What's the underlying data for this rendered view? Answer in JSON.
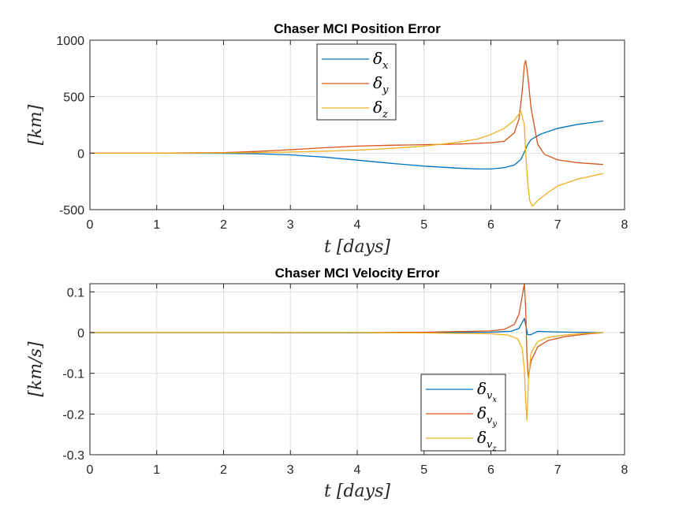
{
  "chart_data": [
    {
      "type": "line",
      "title": "Chaser MCI Position Error",
      "xlabel": "t [days]",
      "ylabel": "[km]",
      "xlim": [
        0,
        8
      ],
      "ylim": [
        -500,
        1000
      ],
      "xticks": [
        "0",
        "1",
        "2",
        "3",
        "4",
        "5",
        "6",
        "7",
        "8"
      ],
      "yticks": [
        "-500",
        "0",
        "500",
        "1000"
      ],
      "ytick_values": [
        -500,
        0,
        500,
        1000
      ],
      "grid": true,
      "legend_position": "top-center",
      "series": [
        {
          "name": "δx",
          "sym": "δ",
          "sub": "x",
          "color": "#0072BD",
          "x": [
            0,
            1,
            2,
            2.5,
            3,
            3.5,
            4,
            4.5,
            5,
            5.5,
            5.8,
            6,
            6.2,
            6.35,
            6.45,
            6.5,
            6.55,
            6.6,
            6.75,
            7,
            7.3,
            7.68
          ],
          "y": [
            0,
            0,
            -2,
            -5,
            -15,
            -35,
            -62,
            -90,
            -115,
            -132,
            -140,
            -140,
            -128,
            -105,
            -55,
            10,
            75,
            120,
            170,
            220,
            255,
            285
          ]
        },
        {
          "name": "δy",
          "sym": "δ",
          "sub": "y",
          "color": "#D95319",
          "x": [
            0,
            1,
            2,
            2.5,
            3,
            3.5,
            4,
            4.5,
            5,
            5.5,
            6,
            6.2,
            6.35,
            6.42,
            6.47,
            6.5,
            6.52,
            6.55,
            6.6,
            6.7,
            6.8,
            7,
            7.3,
            7.68
          ],
          "y": [
            0,
            0,
            5,
            15,
            30,
            48,
            62,
            70,
            75,
            80,
            92,
            105,
            180,
            300,
            550,
            780,
            820,
            700,
            400,
            80,
            -10,
            -60,
            -85,
            -100
          ],
          "peak": 820
        },
        {
          "name": "δz",
          "sym": "δ",
          "sub": "z",
          "color": "#EDB120",
          "x": [
            0,
            1,
            2,
            2.5,
            3,
            3.5,
            4,
            4.5,
            5,
            5.5,
            5.8,
            6,
            6.2,
            6.35,
            6.45,
            6.5,
            6.52,
            6.55,
            6.58,
            6.62,
            6.7,
            6.85,
            7,
            7.3,
            7.68
          ],
          "y": [
            0,
            0,
            2,
            5,
            10,
            17,
            27,
            42,
            62,
            95,
            125,
            165,
            220,
            290,
            370,
            250,
            0,
            -250,
            -420,
            -470,
            -420,
            -350,
            -290,
            -230,
            -180
          ]
        }
      ]
    },
    {
      "type": "line",
      "title": "Chaser MCI Velocity Error",
      "xlabel": "t [days]",
      "ylabel": "[km/s]",
      "xlim": [
        0,
        8
      ],
      "ylim": [
        -0.3,
        0.12
      ],
      "xticks": [
        "0",
        "1",
        "2",
        "3",
        "4",
        "5",
        "6",
        "7",
        "8"
      ],
      "yticks": [
        "-0.3",
        "-0.2",
        "-0.1",
        "0",
        "0.1"
      ],
      "ytick_values": [
        -0.3,
        -0.2,
        -0.1,
        0,
        0.1
      ],
      "grid": true,
      "legend_position": "bottom-center",
      "series": [
        {
          "name": "δvx",
          "sym": "δ",
          "sub": "v",
          "subsub": "x",
          "color": "#0072BD",
          "x": [
            0,
            2,
            4,
            5,
            6,
            6.3,
            6.42,
            6.47,
            6.5,
            6.52,
            6.55,
            6.6,
            6.7,
            6.9,
            7.2,
            7.68
          ],
          "y": [
            0,
            0,
            -0.0005,
            0,
            0.001,
            0.003,
            0.01,
            0.025,
            0.035,
            0.02,
            -0.005,
            -0.005,
            0.003,
            0.002,
            0.001,
            0
          ]
        },
        {
          "name": "δvy",
          "sym": "δ",
          "sub": "v",
          "subsub": "y",
          "color": "#D95319",
          "x": [
            0,
            2,
            4,
            5,
            6,
            6.2,
            6.35,
            6.42,
            6.47,
            6.5,
            6.52,
            6.54,
            6.56,
            6.6,
            6.7,
            6.85,
            7.1,
            7.4,
            7.68
          ],
          "y": [
            0,
            0,
            0,
            0.001,
            0.004,
            0.008,
            0.02,
            0.045,
            0.09,
            0.12,
            0.06,
            -0.06,
            -0.11,
            -0.07,
            -0.035,
            -0.02,
            -0.01,
            -0.004,
            0
          ]
        },
        {
          "name": "δvz",
          "sym": "δ",
          "sub": "v",
          "subsub": "z",
          "color": "#EDB120",
          "x": [
            0,
            2,
            4,
            5,
            6,
            6.25,
            6.4,
            6.47,
            6.5,
            6.52,
            6.54,
            6.56,
            6.6,
            6.7,
            6.85,
            7.1,
            7.4,
            7.68
          ],
          "y": [
            0,
            0,
            0,
            -0.001,
            -0.003,
            -0.006,
            -0.015,
            -0.04,
            -0.09,
            -0.17,
            -0.215,
            -0.12,
            -0.05,
            -0.022,
            -0.012,
            -0.006,
            -0.002,
            0
          ]
        }
      ]
    }
  ]
}
